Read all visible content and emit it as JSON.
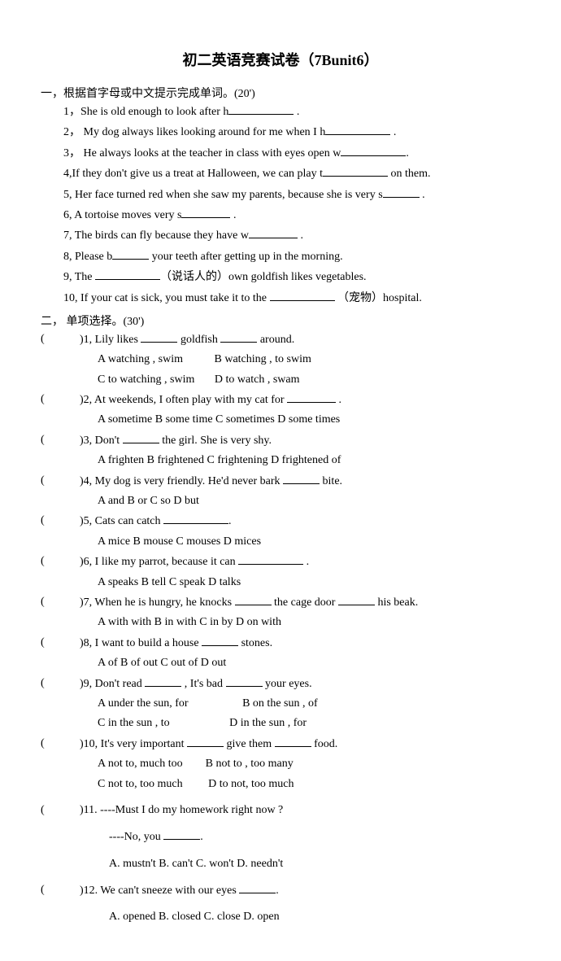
{
  "title": "初二英语竞赛试卷（7Bunit6）",
  "section1": {
    "header": "一，根据首字母或中文提示完成单词。(20')",
    "items": [
      "1，She is old enough to look after h",
      "2，  My dog always likes looking around for me when I h",
      "3，  He always looks at the teacher in class with eyes open w",
      "4,If they don't give us a treat at Halloween, we can play t",
      "5, Her face turned red when she saw my parents, because she is very s",
      "6, A tortoise moves very s",
      "7, The birds can fly because they have w",
      "8, Please b",
      "9, The ",
      "10, If your cat is sick, you must take it to the "
    ],
    "item4_suffix": "   on them.",
    "item8_suffix": "  your teeth after getting up in the morning.",
    "item9_mid": "（说话人的）own goldfish likes vegetables.",
    "item10_suffix": "（宠物）hospital."
  },
  "section2": {
    "header": "二， 单项选择。(30')",
    "q1": {
      "text": ")1, Lily likes ",
      "mid": "  goldfish ",
      "end": "  around.",
      "optA": "A     watching , swim",
      "optB": "B watching ,    to swim",
      "optC": "C     to watching , swim",
      "optD": "D to watch ,    swam"
    },
    "q2": {
      "text": ")2, At weekends, I often play with my cat for ",
      "opts": "A   sometime   B  some    time    C sometimes      D some    times"
    },
    "q3": {
      "text": ")3, Don't   ",
      "suffix": "   the girl. She is very shy.",
      "opts": "A frighten      B    frightened       C frightening       D frightened of"
    },
    "q4": {
      "text": ")4, My dog is very friendly. He'd never bark ",
      "suffix": "  bite.",
      "opts": "A and          B    or              C    so       D    but"
    },
    "q5": {
      "text": ")5, Cats can catch ",
      "opts": "A    mice        B    mouse         C    mouses        D mices"
    },
    "q6": {
      "text": ")6, I like my parrot, because it can ",
      "opts": "A  speaks        B    tell           C    speak        D    talks"
    },
    "q7": {
      "text": ")7, When he is hungry, he knocks ",
      "mid": "   the cage door  ",
      "suffix": "  his beak.",
      "opts": "A   with   with         B   in   with   C   in   by   D    on    with"
    },
    "q8": {
      "text": ")8, I want to build a house ",
      "suffix": "   stones.",
      "opts": "A    of       B    of out       C out of       D out"
    },
    "q9": {
      "text": ")9, Don't read ",
      "mid": " , It's bad ",
      "suffix": "  your eyes.",
      "optA": "A   under the sun,     for",
      "optB": "B on the sun ,    of",
      "optC": "C   in the sun ,         to",
      "optD": "D in the sun ,      for"
    },
    "q10": {
      "text": ")10, It's very important   ",
      "mid": " give them ",
      "suffix": "   food.",
      "optA": "A   not to,     much too",
      "optB": "B not to ,    too many",
      "optC": "C   not to,    too much",
      "optD": "D to not,     too much"
    },
    "q11": {
      "text": ")11. ----Must I do my homework right now ?",
      "line2": "----No, you ",
      "opts": "A. mustn't       B. can't          C. won't     D. needn't"
    },
    "q12": {
      "text": ")12. We can't sneeze with our eyes ",
      "opts": "A. opened      B. closed    C. close      D. open"
    }
  }
}
